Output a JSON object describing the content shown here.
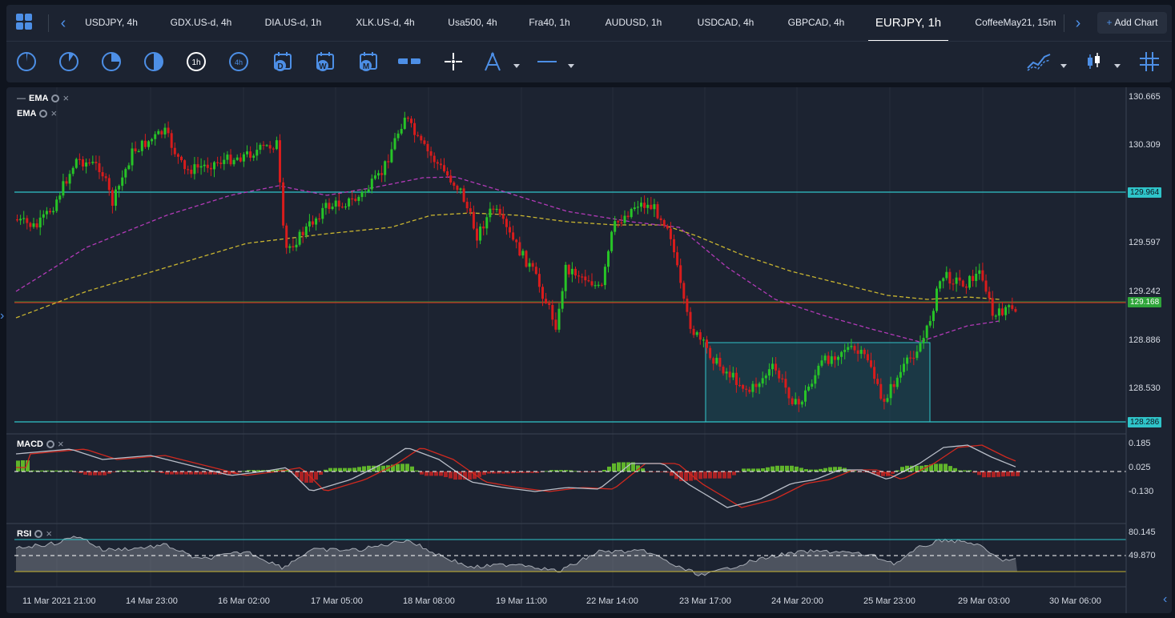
{
  "tabs": [
    "USDJPY, 4h",
    "GDX.US-d, 4h",
    "DIA.US-d, 1h",
    "XLK.US-d, 4h",
    "Usa500, 4h",
    "Fra40, 1h",
    "AUDUSD, 1h",
    "USDCAD, 4h",
    "GBPCAD, 4h",
    "EURJPY, 1h",
    "CoffeeMay21, 15m"
  ],
  "active_tab": "EURJPY, 1h",
  "add_chart_label": "Add Chart",
  "toolbar": {
    "timeframes": [
      "1h",
      "4h",
      "D",
      "W",
      "M"
    ],
    "icons": [
      "timeframe-1m-icon",
      "timeframe-5m-icon",
      "timeframe-15m-icon",
      "timeframe-30m-icon",
      "timeframe-1h-icon",
      "timeframe-4h-icon",
      "calendar-daily-icon",
      "calendar-weekly-icon",
      "calendar-monthly-icon",
      "sync-charts-icon",
      "crosshair-icon",
      "drawing-tools-icon",
      "line-style-icon",
      "indicators-icon",
      "chart-type-icon",
      "grid-icon"
    ]
  },
  "indicators": {
    "ema1": "EMA",
    "ema2": "EMA",
    "macd": "MACD",
    "rsi": "RSI"
  },
  "price_axis": [
    "130.665",
    "130.309",
    "129.597",
    "129.242",
    "128.886",
    "128.530"
  ],
  "price_tags": {
    "upper": "129.964",
    "current": "129.168",
    "lower": "128.286"
  },
  "macd_axis": [
    "0.185",
    "0.025",
    "-0.130"
  ],
  "rsi_axis": [
    "80.145",
    "49.870"
  ],
  "time_axis": [
    "11 Mar 2021 21:00",
    "14 Mar 23:00",
    "16 Mar 02:00",
    "17 Mar 05:00",
    "18 Mar 08:00",
    "19 Mar 11:00",
    "22 Mar 14:00",
    "23 Mar 17:00",
    "24 Mar 20:00",
    "25 Mar 23:00",
    "29 Mar 03:00",
    "30 Mar 06:00"
  ],
  "colors": {
    "up": "#27c427",
    "down": "#d81c1c",
    "ema_fast": "#b33ab8",
    "ema_slow": "#c9b530",
    "level": "#2fc4c9",
    "current": "#d0291f",
    "accent": "#4d8fe6"
  }
}
